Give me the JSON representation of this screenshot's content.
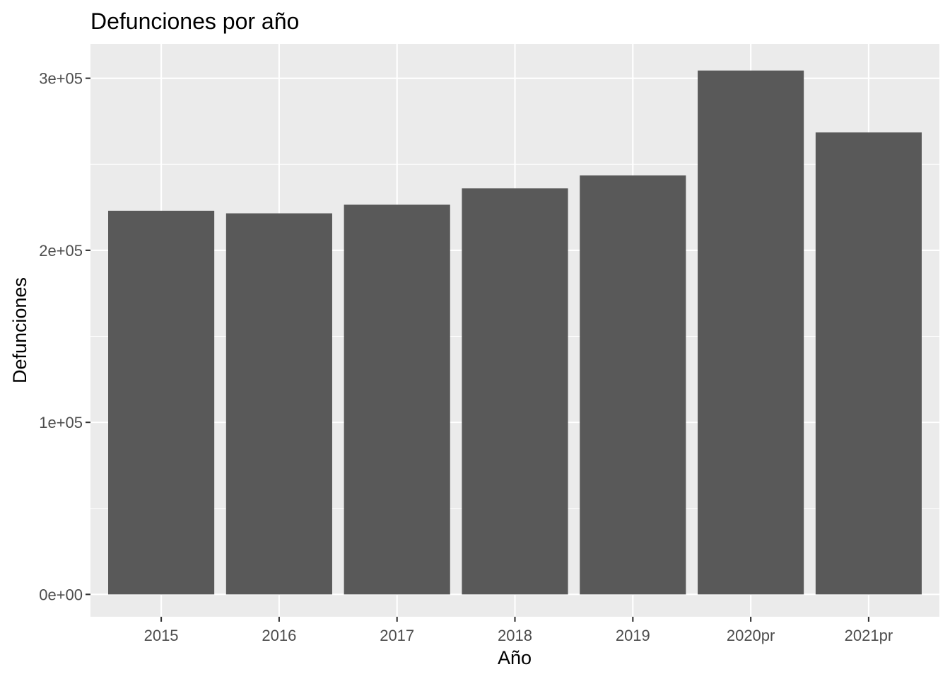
{
  "chart_data": {
    "type": "bar",
    "title": "Defunciones por año",
    "xlabel": "Año",
    "ylabel": "Defunciones",
    "categories": [
      "2015",
      "2016",
      "2017",
      "2018",
      "2019",
      "2020pr",
      "2021pr"
    ],
    "values": [
      223000,
      221500,
      226500,
      236000,
      243500,
      304500,
      268500
    ],
    "ylim": [
      -13000,
      320000
    ],
    "yticks": [
      0,
      100000,
      200000,
      300000
    ],
    "ytick_labels": [
      "0e+00",
      "1e+05",
      "2e+05",
      "3e+05"
    ],
    "grid": true,
    "bar_color": "#595959",
    "panel_color": "#ebebeb",
    "grid_color": "#ffffff"
  }
}
